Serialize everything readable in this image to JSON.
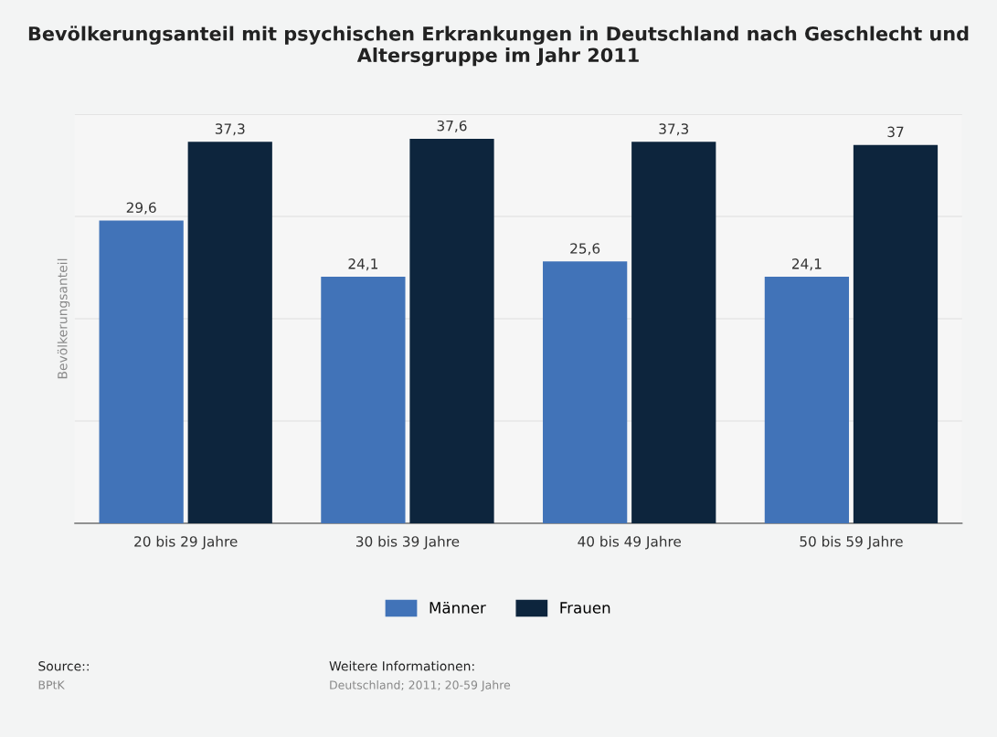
{
  "chart_data": {
    "type": "bar",
    "title": "Bevölkerungsanteil mit psychischen Erkrankungen in Deutschland nach Geschlecht und Altersgruppe im Jahr 2011",
    "ylabel": "Bevölkerungsanteil",
    "categories": [
      "20 bis 29 Jahre",
      "30 bis 39 Jahre",
      "40 bis 49 Jahre",
      "50 bis 59 Jahre"
    ],
    "series": [
      {
        "name": "Männer",
        "color": "#4173b8",
        "values": [
          29.6,
          24.1,
          25.6,
          24.1
        ],
        "value_labels": [
          "29,6",
          "24,1",
          "25,6",
          "24,1"
        ]
      },
      {
        "name": "Frauen",
        "color": "#0d253d",
        "values": [
          37.3,
          37.6,
          37.3,
          37
        ],
        "value_labels": [
          "37,3",
          "37,6",
          "37,3",
          "37"
        ]
      }
    ],
    "ylim": [
      0,
      40
    ],
    "yticks": [
      {
        "value": 0,
        "label": null
      },
      {
        "value": 10,
        "label": null
      },
      {
        "value": 20,
        "label": null
      },
      {
        "value": 30,
        "label": null
      },
      {
        "value": 40,
        "label": null
      }
    ],
    "tick_labels": "x",
    "grid": "y",
    "legend": "bottom",
    "annotations": [
      "Source::",
      "BPtK",
      "Weitere Informationen:",
      "Deutschland; 2011; 20-59 Jahre"
    ]
  }
}
